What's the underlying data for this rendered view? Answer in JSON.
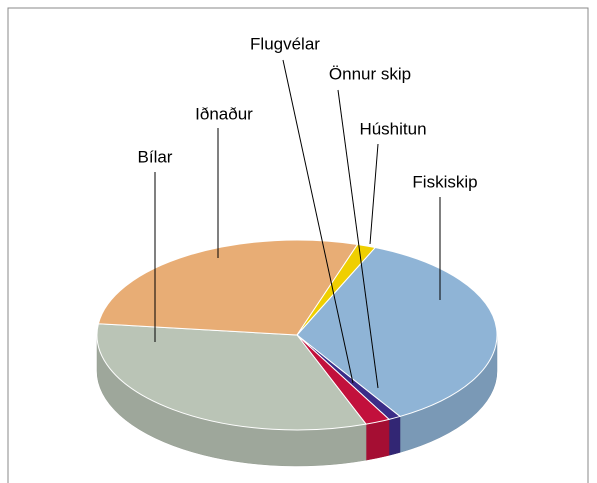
{
  "chart_data": {
    "type": "pie",
    "categories": [
      "Fiskiskip",
      "Önnur skip",
      "Flugvélar",
      "Bílar",
      "Iðnaður",
      "Húshitun"
    ],
    "values": [
      35,
      1,
      2,
      32.5,
      28,
      1.5
    ],
    "colors": [
      "#8fb4d6",
      "#3b2d88",
      "#c2103c",
      "#bac4b6",
      "#e8ad75",
      "#efcf00"
    ]
  }
}
